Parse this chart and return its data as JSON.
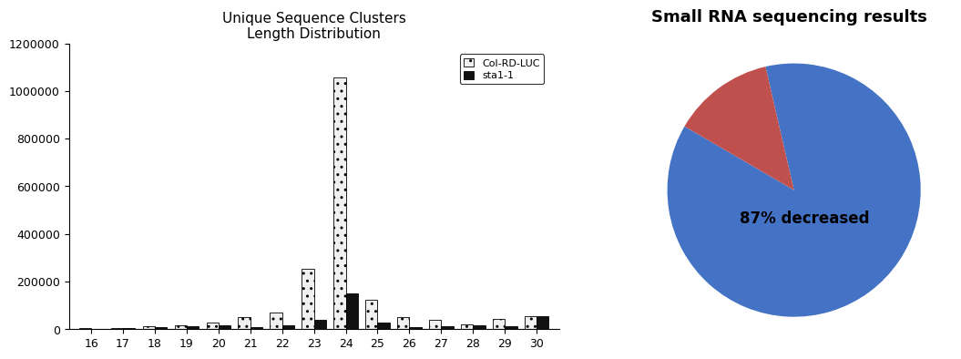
{
  "bar_title": "Unique Sequence Clusters\nLength Distribution",
  "pie_title": "Small RNA sequencing results",
  "categories": [
    16,
    17,
    18,
    19,
    20,
    21,
    22,
    23,
    24,
    25,
    26,
    27,
    28,
    29,
    30
  ],
  "col_rd_luc": [
    3000,
    5000,
    12000,
    18000,
    28000,
    52000,
    70000,
    255000,
    1055000,
    125000,
    50000,
    40000,
    20000,
    45000,
    55000
  ],
  "sta1_1": [
    2000,
    3000,
    10000,
    12000,
    15000,
    10000,
    15000,
    40000,
    150000,
    28000,
    8000,
    12000,
    18000,
    12000,
    55000
  ],
  "col_color": "#f0f0f0",
  "col_hatch": "..",
  "sta1_color": "#111111",
  "sta1_hatch": "",
  "legend_labels": [
    "Col-RD-LUC",
    "sta1-1"
  ],
  "ylim": [
    0,
    1200000
  ],
  "yticks": [
    0,
    200000,
    400000,
    600000,
    800000,
    1000000,
    1200000
  ],
  "pie_values": [
    87,
    13
  ],
  "pie_colors": [
    "#4472C4",
    "#C0504D"
  ],
  "pie_label": "87% decreased",
  "background_color": "#ffffff"
}
